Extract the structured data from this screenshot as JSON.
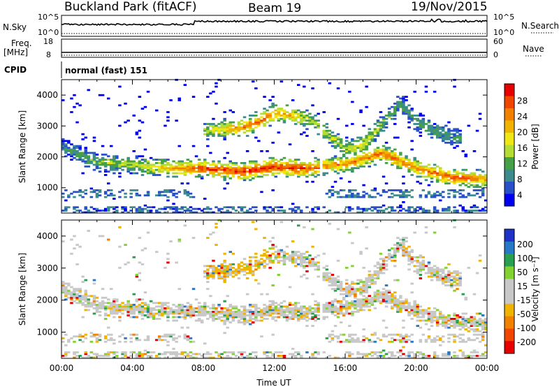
{
  "header": {
    "station": "Buckland Park (fitACF)",
    "beam": "Beam 19",
    "date": "19/Nov/2015"
  },
  "strips": {
    "nsky_label": "N.Sky",
    "nsky_ticks": [
      "10^5",
      "10^0"
    ],
    "nsearch_label": "N.Search",
    "nsearch_ticks": [
      "10^5",
      "10^0"
    ],
    "freq_label_1": "Freq.",
    "freq_label_2": "[MHz]",
    "freq_ticks": [
      "18",
      "8"
    ],
    "nave_label": "Nave",
    "nave_ticks": [
      "60",
      "0"
    ],
    "cpid_label": "CPID",
    "cpid_value": "normal (fast) 151"
  },
  "chart_data": [
    {
      "type": "heatmap",
      "panel": "power",
      "xlabel": "",
      "ylabel": "Slant Range [km]",
      "y_ticks": [
        "1000",
        "2000",
        "3000",
        "4000"
      ],
      "ylim": [
        180,
        4500
      ],
      "xlim": [
        0,
        24
      ],
      "colorbar_label": "Power [dB]",
      "colorbar_ticks": [
        "28",
        "24",
        "20",
        "16",
        "12",
        "8",
        "4"
      ],
      "colorbar_colors": [
        "#0000f0",
        "#2850c8",
        "#3c8c8c",
        "#46a046",
        "#b4dc32",
        "#f0e614",
        "#f0b400",
        "#f08200",
        "#f04600",
        "#e60000"
      ],
      "features": [
        {
          "name": "lower band",
          "x": [
            0,
            2,
            4,
            6,
            8,
            10,
            12,
            14,
            15,
            16,
            18,
            20,
            22,
            24
          ],
          "range_km": [
            2300,
            1800,
            1700,
            1600,
            1600,
            1500,
            1650,
            1600,
            1700,
            1750,
            2100,
            1600,
            1300,
            1250
          ],
          "peak_db": [
            8,
            12,
            14,
            20,
            26,
            28,
            28,
            26,
            22,
            22,
            24,
            22,
            26,
            20
          ]
        },
        {
          "name": "upper band",
          "x": [
            8,
            9,
            10,
            11,
            12,
            13,
            14,
            16,
            17,
            18,
            19,
            20,
            21,
            22
          ],
          "range_km": [
            2800,
            2900,
            2900,
            3100,
            3400,
            3300,
            3200,
            2200,
            2400,
            3000,
            3700,
            3100,
            2800,
            2600
          ],
          "peak_db": [
            14,
            18,
            22,
            24,
            22,
            18,
            14,
            14,
            16,
            12,
            10,
            10,
            10,
            8
          ]
        }
      ]
    },
    {
      "type": "heatmap",
      "panel": "velocity",
      "xlabel": "Time UT",
      "ylabel": "Slant Range [km]",
      "x_ticks": [
        "00:00",
        "04:00",
        "08:00",
        "12:00",
        "16:00",
        "20:00",
        "00:00"
      ],
      "y_ticks": [
        "1000",
        "2000",
        "3000",
        "4000"
      ],
      "ylim": [
        180,
        4500
      ],
      "xlim": [
        0,
        24
      ],
      "colorbar_label": "Velocity [m s⁻¹]",
      "colorbar_ticks": [
        "200",
        "100",
        "50",
        "15",
        "-15",
        "-50",
        "-100",
        "-200"
      ],
      "colorbar_colors": [
        "#1e32c8",
        "#2878c8",
        "#28a050",
        "#82d232",
        "#c8c8c8",
        "#c8c8c8",
        "#f0b400",
        "#f08200",
        "#f04600",
        "#e60000"
      ]
    }
  ]
}
